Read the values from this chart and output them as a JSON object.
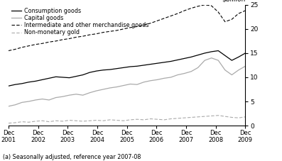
{
  "title": "",
  "footnote": "(a) Seasonally adjusted, reference year 2007-08",
  "ylim": [
    0,
    25
  ],
  "yticks": [
    0,
    5,
    10,
    15,
    20,
    25
  ],
  "x_labels": [
    "Dec\n2001",
    "Dec\n2002",
    "Dec\n2003",
    "Dec\n2004",
    "Dec\n2005",
    "Dec\n2006",
    "Dec\n2007",
    "Dec\n2008",
    "Dec\n2009"
  ],
  "legend": [
    "Consumption goods",
    "Capital goods",
    "Intermediate and other merchandise goods",
    "Non-monetary gold"
  ],
  "consumption_goods": [
    8.2,
    8.5,
    8.7,
    9.0,
    9.2,
    9.5,
    9.8,
    10.1,
    10.0,
    9.9,
    10.2,
    10.5,
    11.0,
    11.3,
    11.5,
    11.6,
    11.8,
    12.0,
    12.2,
    12.3,
    12.5,
    12.7,
    12.9,
    13.1,
    13.3,
    13.6,
    13.9,
    14.2,
    14.6,
    15.0,
    15.3,
    15.5,
    14.5,
    13.5,
    14.2,
    15.0
  ],
  "capital_goods": [
    4.0,
    4.3,
    4.8,
    5.0,
    5.3,
    5.5,
    5.3,
    5.8,
    6.0,
    6.3,
    6.5,
    6.3,
    6.8,
    7.2,
    7.5,
    7.8,
    8.0,
    8.3,
    8.6,
    8.5,
    9.0,
    9.3,
    9.5,
    9.8,
    10.0,
    10.5,
    10.8,
    11.2,
    12.0,
    13.5,
    14.0,
    13.5,
    11.5,
    10.5,
    11.5,
    12.3
  ],
  "intermediate_goods": [
    15.5,
    15.8,
    16.2,
    16.5,
    16.8,
    17.0,
    17.3,
    17.5,
    17.8,
    18.0,
    18.3,
    18.5,
    18.8,
    19.0,
    19.3,
    19.5,
    19.7,
    20.0,
    20.3,
    20.5,
    20.8,
    21.2,
    21.7,
    22.2,
    22.7,
    23.2,
    23.8,
    24.3,
    24.7,
    25.0,
    24.8,
    23.5,
    21.5,
    22.0,
    23.2,
    23.8
  ],
  "non_monetary_gold": [
    0.5,
    0.6,
    0.8,
    0.7,
    0.9,
    1.0,
    0.8,
    1.0,
    0.9,
    1.1,
    1.0,
    0.9,
    1.0,
    1.1,
    1.0,
    1.2,
    1.1,
    1.0,
    1.2,
    1.3,
    1.2,
    1.4,
    1.3,
    1.2,
    1.4,
    1.5,
    1.6,
    1.7,
    1.8,
    1.9,
    2.0,
    2.1,
    1.9,
    1.7,
    1.6,
    1.8
  ],
  "n_points": 36,
  "color_consumption": "#000000",
  "color_capital": "#aaaaaa",
  "color_intermediate": "#000000",
  "color_gold": "#aaaaaa",
  "bg_color": "#ffffff"
}
